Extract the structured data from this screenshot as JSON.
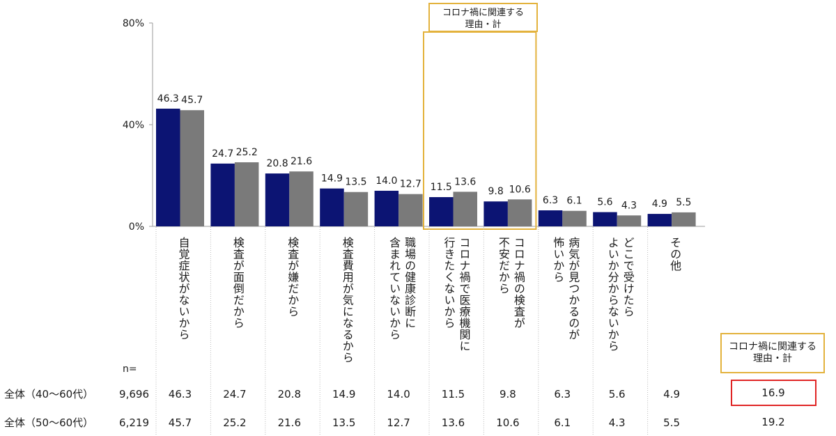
{
  "chart_data": {
    "type": "bar",
    "categories": [
      "自覚症状がないから",
      "検査が面倒だから",
      "検査が嫌だから",
      "検査費用が気になるから",
      "職場の健康診断に\n含まれていないから",
      "コロナ禍で医療機関に\n行きたくないから",
      "コロナ禍の検査が\n不安だから",
      "病気が見つかるのが\n怖いから",
      "どこで受けたら\nよいか分からないから",
      "その他"
    ],
    "series": [
      {
        "name": "全体（40〜60代）",
        "color": "#0c1473",
        "values": [
          46.3,
          24.7,
          20.8,
          14.9,
          14.0,
          11.5,
          9.8,
          6.3,
          5.6,
          4.9
        ],
        "n": "9,696",
        "covid_total": "16.9"
      },
      {
        "name": "全体（50〜60代）",
        "color": "#7a7a7a",
        "values": [
          45.7,
          25.2,
          21.6,
          13.5,
          12.7,
          13.6,
          10.6,
          6.1,
          4.3,
          5.5
        ],
        "n": "6,219",
        "covid_total": "19.2"
      }
    ],
    "ylim": [
      0,
      80
    ],
    "yticks": [
      "0%",
      "40%",
      "80%"
    ],
    "highlight_categories": [
      5,
      6
    ],
    "highlight_label": "コロナ禍に関連する\n理由・計",
    "highlight_color": "#e3b23c",
    "n_label": "n=",
    "grid": false,
    "legend": "none"
  }
}
